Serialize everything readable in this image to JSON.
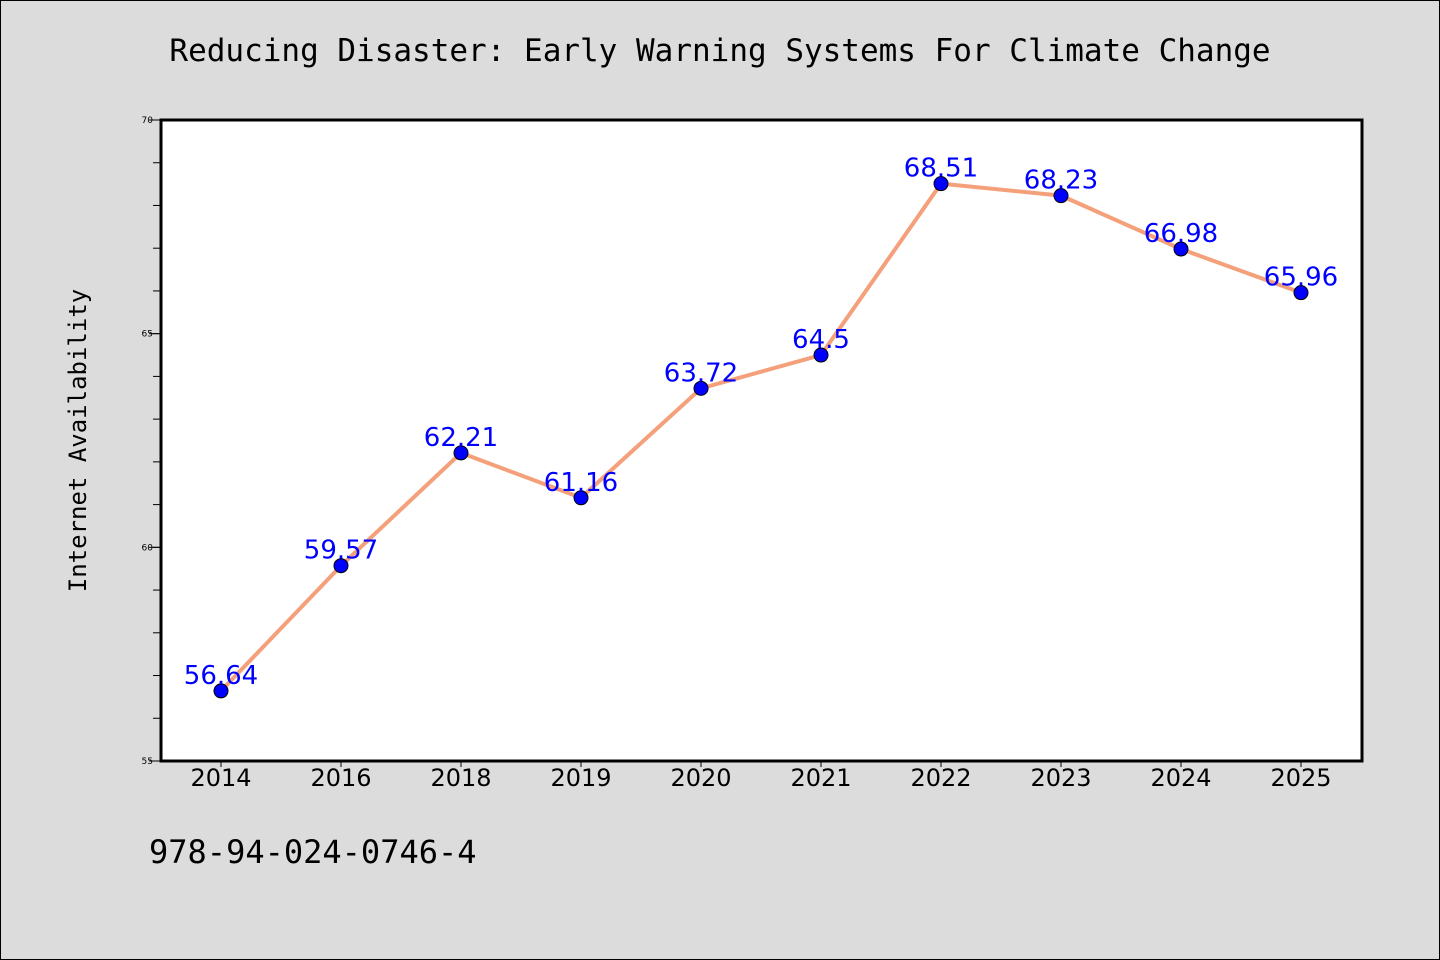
{
  "chart_data": {
    "type": "line",
    "title": "Reducing Disaster: Early Warning Systems For Climate Change",
    "xlabel": "",
    "ylabel": "Internet Availability",
    "categories": [
      "2014",
      "2016",
      "2018",
      "2019",
      "2020",
      "2021",
      "2022",
      "2023",
      "2024",
      "2025"
    ],
    "series": [
      {
        "values": [
          56.64,
          59.57,
          62.21,
          61.16,
          63.72,
          64.5,
          68.51,
          68.23,
          66.98,
          65.96
        ],
        "data_labels": [
          "56.64",
          "59.57",
          "62.21",
          "61.16",
          "63.72",
          "64.5",
          "68.51",
          "68.23",
          "66.98",
          "65.96"
        ]
      }
    ],
    "ylim": [
      55,
      70
    ],
    "yticks": [
      "55",
      "60",
      "65",
      "70"
    ],
    "y_minor_tick_step": 1,
    "grid": false,
    "legend": "none",
    "colors": {
      "line": "#f4a07a",
      "marker": "#0000ff",
      "data_label": "#0000ff",
      "figure_background": "#dcdcdc",
      "plot_background": "#ffffff"
    }
  },
  "footer": {
    "text": "978-94-024-0746-4"
  }
}
